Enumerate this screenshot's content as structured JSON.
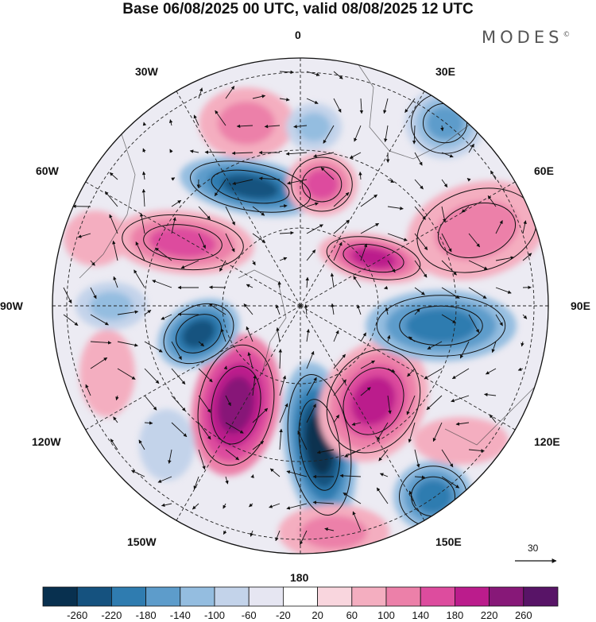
{
  "title": "Base 06/08/2025 00 UTC, valid 08/08/2025 12 UTC",
  "brand": "MODES",
  "brand_mark": "©",
  "longitude_labels": {
    "l0": "0",
    "l30e": "30E",
    "l60e": "60E",
    "l90e": "90E",
    "l120e": "120E",
    "l150e": "150E",
    "l180": "180",
    "l150w": "150W",
    "l120w": "120W",
    "l90w": "90W",
    "l60w": "60W",
    "l30w": "30W"
  },
  "vector_scale": {
    "label": "30"
  },
  "colorbar": {
    "labels": [
      "-260",
      "-220",
      "-180",
      "-140",
      "-100",
      "-60",
      "-20",
      "20",
      "60",
      "100",
      "140",
      "180",
      "220",
      "260"
    ],
    "colors": [
      "#08304f",
      "#15527f",
      "#2f7cb0",
      "#5d9ccb",
      "#94bde0",
      "#c3d3ea",
      "#e6e6f2",
      "#ffffff",
      "#f9d6de",
      "#f4aec0",
      "#ec80a9",
      "#dd4c9e",
      "#bb1c8c",
      "#871878",
      "#581467"
    ]
  },
  "chart_data": {
    "type": "heatmap",
    "projection": "polar stereographic (southern hemisphere)",
    "title": "Base 06/08/2025 00 UTC, valid 08/08/2025 12 UTC",
    "field": "anomaly shading with wind vectors",
    "color_levels": [
      -260,
      -220,
      -180,
      -140,
      -100,
      -60,
      -20,
      20,
      60,
      100,
      140,
      180,
      220,
      260
    ],
    "vector_reference": 30,
    "features": [
      {
        "lon": "180",
        "sign": "negative",
        "peak": -260
      },
      {
        "lon": "150W",
        "sign": "positive",
        "peak": 240
      },
      {
        "lon": "150E",
        "sign": "positive",
        "peak": 220
      },
      {
        "lon": "120W",
        "sign": "negative",
        "peak": -220
      },
      {
        "lon": "90E",
        "sign": "negative",
        "peak": -180
      },
      {
        "lon": "45W",
        "sign": "negative",
        "peak": -200
      },
      {
        "lon": "60W",
        "sign": "positive",
        "peak": 160
      },
      {
        "lon": "60E",
        "sign": "positive",
        "peak": 180
      },
      {
        "lon": "20E",
        "sign": "positive",
        "peak": 150
      },
      {
        "lon": "135E",
        "sign": "negative",
        "peak": -160
      }
    ]
  }
}
